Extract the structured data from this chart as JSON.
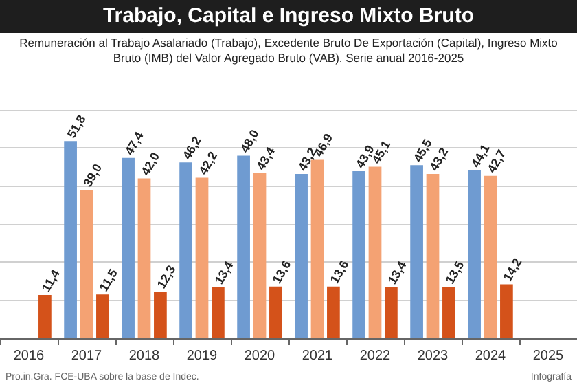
{
  "chart_data": {
    "type": "bar",
    "title": "Trabajo, Capital e Ingreso Mixto Bruto",
    "subtitle": "Remuneración al Trabajo Asalariado (Trabajo), Excedente Bruto De Exportación (Capital), Ingreso Mixto Bruto (IMB) del Valor Agregado Bruto (VAB). Serie anual 2016-2025",
    "categories": [
      "2016",
      "2017",
      "2018",
      "2019",
      "2020",
      "2021",
      "2022",
      "2023",
      "2024",
      "2025"
    ],
    "series": [
      {
        "color": "#6f9bd1",
        "values": [
          null,
          51.8,
          47.4,
          46.2,
          48.0,
          43.2,
          43.9,
          45.5,
          44.1,
          null
        ],
        "value_labels": [
          null,
          "51,8",
          "47,4",
          "46,2",
          "48,0",
          "43,2",
          "43,9",
          "45,5",
          "44,1",
          null
        ]
      },
      {
        "color": "#f4a273",
        "values": [
          null,
          39.0,
          42.0,
          42.2,
          43.4,
          46.9,
          45.1,
          43.2,
          42.7,
          null
        ],
        "value_labels": [
          null,
          "39,0",
          "42,0",
          "42,2",
          "43,4",
          "46,9",
          "45,1",
          "43,2",
          "42,7",
          null
        ]
      },
      {
        "color": "#d4521a",
        "values": [
          11.4,
          11.5,
          12.3,
          13.4,
          13.6,
          13.6,
          13.4,
          13.5,
          14.2,
          null
        ],
        "value_labels": [
          "11,4",
          "11,5",
          "12,3",
          "13,4",
          "13,6",
          "13,6",
          "13,4",
          "13,5",
          "14,2",
          null
        ]
      }
    ],
    "tick_labels": "x",
    "grid": "y",
    "annotations": [
      "Pro.in.Gra. FCE-UBA sobre la base de Indec.",
      "Infografía"
    ]
  }
}
